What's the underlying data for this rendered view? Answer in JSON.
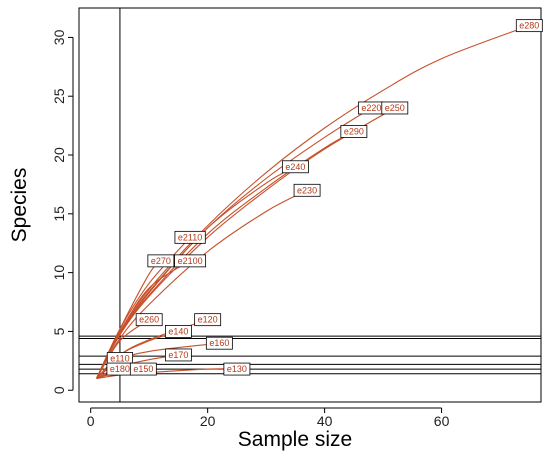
{
  "chart_data": {
    "type": "line",
    "title": "",
    "xlabel": "Sample size",
    "ylabel": "Species",
    "xlim": [
      -2,
      77
    ],
    "ylim": [
      -1,
      32.5
    ],
    "xticks": [
      0,
      20,
      40,
      60
    ],
    "xtick_labels": [
      "0",
      "20",
      "40",
      "60"
    ],
    "yticks": [
      0,
      5,
      10,
      15,
      20,
      25,
      30
    ],
    "ytick_labels": [
      "0",
      "5",
      "10",
      "15",
      "20",
      "25",
      "30"
    ],
    "grid": false,
    "legend": "none",
    "reference_lines": {
      "vertical_x": [
        5
      ],
      "horizontal_y": [
        4.4,
        4.6,
        2.2,
        2.9,
        1.4,
        1.8
      ]
    },
    "series": [
      {
        "name": "e280",
        "x": [
          1,
          5,
          10,
          20,
          30,
          40,
          50,
          60,
          75
        ],
        "y": [
          1,
          5,
          8.6,
          14,
          18.5,
          22.3,
          25.5,
          28.2,
          31
        ]
      },
      {
        "name": "e220",
        "x": [
          1,
          5,
          10,
          20,
          30,
          40,
          48
        ],
        "y": [
          1,
          4.9,
          8.4,
          13.8,
          18,
          21.5,
          24
        ]
      },
      {
        "name": "e250",
        "x": [
          1,
          5,
          10,
          20,
          30,
          40,
          52
        ],
        "y": [
          1,
          4.7,
          8,
          13,
          17,
          20.5,
          24
        ]
      },
      {
        "name": "e290",
        "x": [
          1,
          5,
          10,
          20,
          30,
          40,
          45
        ],
        "y": [
          1,
          4.8,
          8.1,
          13.3,
          17.2,
          20.6,
          22
        ]
      },
      {
        "name": "e240",
        "x": [
          1,
          5,
          10,
          20,
          30,
          35
        ],
        "y": [
          1,
          4.8,
          8.3,
          13.8,
          17.6,
          19
        ]
      },
      {
        "name": "e230",
        "x": [
          1,
          5,
          10,
          20,
          30,
          37
        ],
        "y": [
          1,
          4.4,
          7.3,
          11.8,
          15.2,
          17
        ]
      },
      {
        "name": "e2110",
        "x": [
          1,
          5,
          10,
          17
        ],
        "y": [
          1,
          5.2,
          9.1,
          13
        ]
      },
      {
        "name": "e270",
        "x": [
          1,
          5,
          10,
          12
        ],
        "y": [
          1,
          5.2,
          9.9,
          11
        ]
      },
      {
        "name": "e2100",
        "x": [
          1,
          5,
          10,
          17
        ],
        "y": [
          1,
          4.9,
          8.7,
          11
        ]
      },
      {
        "name": "e260",
        "x": [
          1,
          5,
          10
        ],
        "y": [
          1,
          4.2,
          6
        ]
      },
      {
        "name": "e120",
        "x": [
          1,
          5,
          10,
          20
        ],
        "y": [
          1,
          3,
          4.3,
          6
        ]
      },
      {
        "name": "e140",
        "x": [
          1,
          5,
          10,
          15
        ],
        "y": [
          1,
          3,
          4.2,
          5
        ]
      },
      {
        "name": "e160",
        "x": [
          1,
          5,
          10,
          20,
          22
        ],
        "y": [
          1,
          2.6,
          3.3,
          3.9,
          4
        ]
      },
      {
        "name": "e170",
        "x": [
          1,
          5,
          10,
          15
        ],
        "y": [
          1,
          2,
          2.6,
          3
        ]
      },
      {
        "name": "e110",
        "x": [
          1,
          5
        ],
        "y": [
          1,
          2.7
        ]
      },
      {
        "name": "e180",
        "x": [
          1,
          5
        ],
        "y": [
          1,
          1.8
        ]
      },
      {
        "name": "e150",
        "x": [
          1,
          5,
          9
        ],
        "y": [
          1,
          1.6,
          1.8
        ]
      },
      {
        "name": "e130",
        "x": [
          1,
          5,
          10,
          20,
          25
        ],
        "y": [
          1,
          1.3,
          1.5,
          1.8,
          1.8
        ]
      }
    ]
  }
}
